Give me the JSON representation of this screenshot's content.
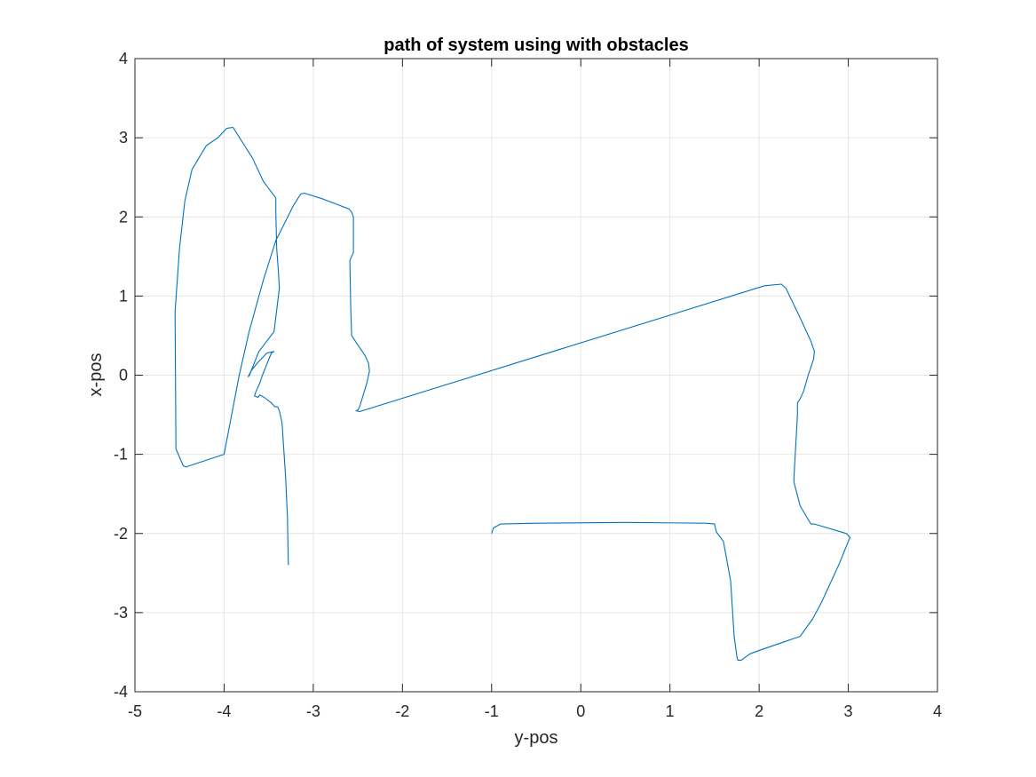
{
  "chart_data": {
    "type": "line",
    "title": "path of system using with obstacles",
    "xlabel": "y-pos",
    "ylabel": "x-pos",
    "xlim": [
      -5,
      4
    ],
    "ylim": [
      -4,
      4
    ],
    "xticks": [
      -5,
      -4,
      -3,
      -2,
      -1,
      0,
      1,
      2,
      3,
      4
    ],
    "yticks": [
      -4,
      -3,
      -2,
      -1,
      0,
      1,
      2,
      3,
      4
    ],
    "xtick_labels": [
      "-5",
      "-4",
      "-3",
      "-2",
      "-1",
      "0",
      "1",
      "2",
      "3",
      "4"
    ],
    "ytick_labels": [
      "-4",
      "-3",
      "-2",
      "-1",
      "0",
      "1",
      "2",
      "3",
      "4"
    ],
    "grid": true,
    "line_color": "#0072BD",
    "grid_color": "#e6e6e6",
    "series": [
      {
        "x": [
          -3.28,
          -3.29,
          -3.31,
          -3.35,
          -3.38,
          -3.4,
          -3.43,
          -3.47,
          -3.55,
          -3.6,
          -3.62,
          -3.66,
          -3.64,
          -3.6,
          -3.57,
          -3.47,
          -3.44,
          -3.52,
          -3.63,
          -3.7,
          -3.73,
          -3.72,
          -3.61,
          -3.44,
          -3.38,
          -3.39,
          -3.41,
          -3.42,
          -3.42,
          -3.56,
          -3.68,
          -3.9,
          -3.97,
          -4.07,
          -4.2,
          -4.36,
          -4.44,
          -4.5,
          -4.55,
          -4.54,
          -4.46,
          -4.43,
          -4.0,
          -3.83,
          -3.72,
          -3.56,
          -3.42,
          -3.22,
          -3.14,
          -3.1,
          -2.9,
          -2.6,
          -2.57,
          -2.55,
          -2.55,
          -2.57,
          -2.59,
          -2.58,
          -2.57,
          -2.5,
          -2.42,
          -2.38,
          -2.37,
          -2.4,
          -2.48,
          -2.5,
          -2.52,
          -2.48,
          2.06,
          2.25,
          2.3,
          2.45,
          2.58,
          2.62,
          2.61,
          2.55,
          2.5,
          2.46,
          2.43,
          2.43,
          2.41,
          2.39,
          2.39,
          2.46,
          2.58,
          2.62,
          2.98,
          3.02,
          3.0,
          2.9,
          2.7,
          2.6,
          2.46,
          2.02,
          1.9,
          1.8,
          1.76,
          1.75,
          1.72,
          1.68,
          1.6,
          1.52,
          1.5,
          1.4,
          0.5,
          -0.5,
          -0.9,
          -0.98,
          -1.0
        ],
        "y": [
          -2.4,
          -1.8,
          -1.3,
          -0.6,
          -0.45,
          -0.4,
          -0.4,
          -0.35,
          -0.28,
          -0.25,
          -0.28,
          -0.26,
          -0.2,
          -0.1,
          0.0,
          0.28,
          0.3,
          0.28,
          0.15,
          0.05,
          -0.02,
          -0.01,
          0.3,
          0.55,
          1.1,
          1.3,
          1.6,
          2.05,
          2.24,
          2.45,
          2.74,
          3.13,
          3.12,
          3.0,
          2.9,
          2.6,
          2.2,
          1.6,
          0.8,
          -0.93,
          -1.14,
          -1.16,
          -1.0,
          0.0,
          0.55,
          1.2,
          1.7,
          2.15,
          2.29,
          2.3,
          2.23,
          2.1,
          2.06,
          2.0,
          1.55,
          1.5,
          1.45,
          0.85,
          0.5,
          0.38,
          0.25,
          0.15,
          0.05,
          -0.1,
          -0.4,
          -0.44,
          -0.45,
          -0.46,
          1.13,
          1.15,
          1.1,
          0.75,
          0.43,
          0.3,
          0.2,
          0.0,
          -0.2,
          -0.3,
          -0.35,
          -0.5,
          -0.9,
          -1.3,
          -1.35,
          -1.65,
          -1.88,
          -1.88,
          -2.0,
          -2.05,
          -2.1,
          -2.38,
          -2.87,
          -3.08,
          -3.3,
          -3.47,
          -3.52,
          -3.6,
          -3.6,
          -3.55,
          -3.3,
          -2.6,
          -2.1,
          -1.98,
          -1.88,
          -1.87,
          -1.86,
          -1.87,
          -1.88,
          -1.93,
          -2.0
        ]
      }
    ]
  }
}
